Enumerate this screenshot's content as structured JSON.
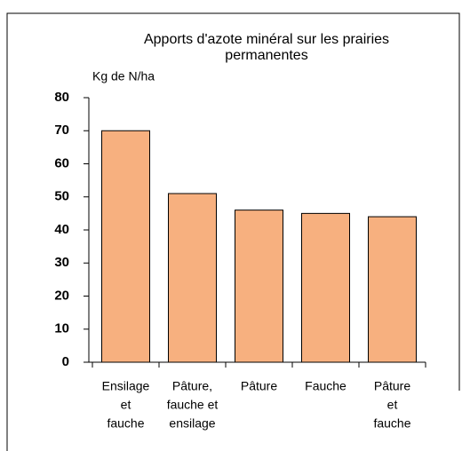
{
  "chart_data": {
    "type": "bar",
    "title": [
      "Apports d'azote minéral sur les prairies",
      "permanentes"
    ],
    "y_label": "Kg de N/ha",
    "categories": [
      [
        "Ensilage",
        "et",
        "fauche"
      ],
      [
        "Pâture,",
        "fauche et",
        "ensilage"
      ],
      [
        "Pâture"
      ],
      [
        "Fauche"
      ],
      [
        "Pâture",
        "et",
        "fauche"
      ]
    ],
    "values": [
      70,
      51,
      46,
      45,
      44
    ],
    "color": "#f7b07f",
    "ylim": [
      0,
      80
    ],
    "yticks": [
      0,
      10,
      20,
      30,
      40,
      50,
      60,
      70,
      80
    ],
    "grid": false
  }
}
